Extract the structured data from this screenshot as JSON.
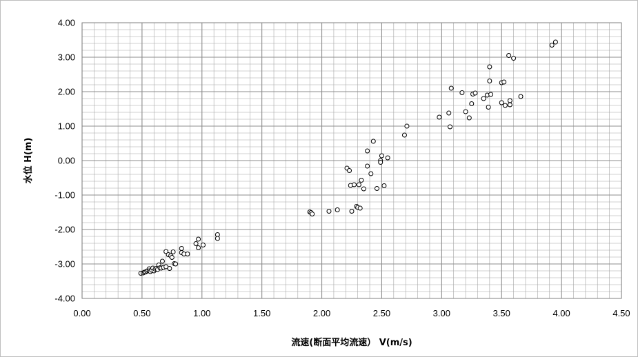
{
  "chart_data": {
    "type": "scatter",
    "title": "",
    "xlabel": "流速(断面平均流速） V(m/s)",
    "ylabel": "水位 H(m)",
    "xlim": [
      0,
      4.5
    ],
    "ylim": [
      -4,
      4
    ],
    "x_major_step": 0.5,
    "x_minor_step": 0.1,
    "y_major_step": 1,
    "y_minor_step": 0.2,
    "x_tick_labels": [
      "0.00",
      "0.50",
      "1.00",
      "1.50",
      "2.00",
      "2.50",
      "3.00",
      "3.50",
      "4.00",
      "4.50"
    ],
    "y_tick_labels": [
      "4.00",
      "3.00",
      "2.00",
      "1.00",
      "0.00",
      "-1.00",
      "-2.00",
      "-3.00",
      "-4.00"
    ],
    "grid": true,
    "marker": "open-circle",
    "marker_color": "#000000",
    "grid_color": "#a6a6a6",
    "series": [
      {
        "values": [
          [
            0.49,
            -3.27
          ],
          [
            0.51,
            -3.26
          ],
          [
            0.52,
            -3.24
          ],
          [
            0.53,
            -3.23
          ],
          [
            0.54,
            -3.21
          ],
          [
            0.55,
            -3.19
          ],
          [
            0.56,
            -3.14
          ],
          [
            0.56,
            -3.2
          ],
          [
            0.57,
            -3.22
          ],
          [
            0.58,
            -3.18
          ],
          [
            0.59,
            -3.12
          ],
          [
            0.6,
            -3.2
          ],
          [
            0.61,
            -3.15
          ],
          [
            0.62,
            -3.13
          ],
          [
            0.63,
            -3.16
          ],
          [
            0.64,
            -3.03
          ],
          [
            0.65,
            -3.11
          ],
          [
            0.66,
            -3.12
          ],
          [
            0.67,
            -2.92
          ],
          [
            0.68,
            -3.1
          ],
          [
            0.7,
            -3.08
          ],
          [
            0.7,
            -2.64
          ],
          [
            0.72,
            -2.73
          ],
          [
            0.73,
            -3.13
          ],
          [
            0.74,
            -2.76
          ],
          [
            0.75,
            -2.81
          ],
          [
            0.76,
            -2.65
          ],
          [
            0.77,
            -2.99
          ],
          [
            0.78,
            -3.0
          ],
          [
            0.83,
            -2.55
          ],
          [
            0.83,
            -2.67
          ],
          [
            0.85,
            -2.71
          ],
          [
            0.88,
            -2.71
          ],
          [
            0.95,
            -2.41
          ],
          [
            0.97,
            -2.28
          ],
          [
            0.97,
            -2.53
          ],
          [
            1.01,
            -2.45
          ],
          [
            1.13,
            -2.15
          ],
          [
            1.13,
            -2.26
          ],
          [
            1.9,
            -1.49
          ],
          [
            1.91,
            -1.51
          ],
          [
            1.92,
            -1.55
          ],
          [
            2.06,
            -1.47
          ],
          [
            2.13,
            -1.43
          ],
          [
            2.21,
            -0.22
          ],
          [
            2.23,
            -0.29
          ],
          [
            2.24,
            -0.72
          ],
          [
            2.25,
            -1.47
          ],
          [
            2.27,
            -0.7
          ],
          [
            2.29,
            -1.33
          ],
          [
            2.3,
            -1.36
          ],
          [
            2.31,
            -0.7
          ],
          [
            2.32,
            -1.38
          ],
          [
            2.33,
            -0.57
          ],
          [
            2.35,
            -0.82
          ],
          [
            2.38,
            0.28
          ],
          [
            2.38,
            -0.16
          ],
          [
            2.41,
            -0.38
          ],
          [
            2.43,
            0.56
          ],
          [
            2.46,
            -0.81
          ],
          [
            2.49,
            0.0
          ],
          [
            2.49,
            -0.05
          ],
          [
            2.5,
            0.14
          ],
          [
            2.52,
            -0.73
          ],
          [
            2.55,
            0.08
          ],
          [
            2.69,
            0.74
          ],
          [
            2.71,
            1.0
          ],
          [
            2.98,
            1.26
          ],
          [
            3.06,
            1.38
          ],
          [
            3.07,
            0.98
          ],
          [
            3.08,
            2.1
          ],
          [
            3.17,
            1.97
          ],
          [
            3.2,
            1.42
          ],
          [
            3.23,
            1.24
          ],
          [
            3.25,
            1.65
          ],
          [
            3.26,
            1.93
          ],
          [
            3.28,
            1.96
          ],
          [
            3.35,
            1.8
          ],
          [
            3.38,
            1.9
          ],
          [
            3.39,
            1.55
          ],
          [
            3.4,
            2.72
          ],
          [
            3.4,
            2.31
          ],
          [
            3.41,
            1.92
          ],
          [
            3.5,
            1.68
          ],
          [
            3.5,
            2.26
          ],
          [
            3.52,
            2.28
          ],
          [
            3.53,
            1.6
          ],
          [
            3.56,
            3.05
          ],
          [
            3.57,
            1.62
          ],
          [
            3.57,
            1.74
          ],
          [
            3.6,
            2.97
          ],
          [
            3.66,
            1.86
          ],
          [
            3.92,
            3.35
          ],
          [
            3.95,
            3.44
          ]
        ]
      }
    ]
  }
}
